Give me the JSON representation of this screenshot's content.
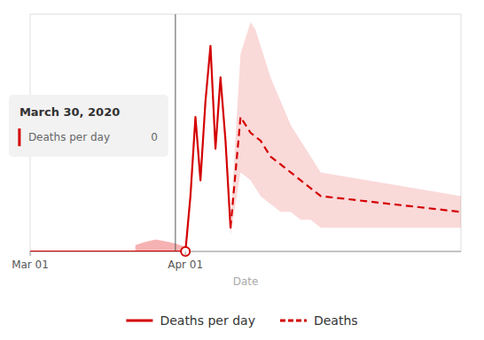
{
  "chart_data": {
    "type": "line",
    "xlabel": "Date",
    "xlim": [
      -31,
      55
    ],
    "xticks": [
      {
        "value": -31,
        "label": "Mar 01"
      },
      {
        "value": 0,
        "label": "Apr 01"
      }
    ],
    "ylim": [
      0,
      30
    ],
    "grid": false,
    "tick_labels": "x",
    "legend": "bottom",
    "series": [
      {
        "name": "Deaths per day",
        "color": "#d40000",
        "line_style": "solid",
        "x": [
          -31,
          -25,
          -15,
          -5,
          0,
          1,
          2,
          3,
          4,
          5,
          6,
          7,
          8,
          9
        ],
        "values": [
          0,
          0,
          0,
          0,
          0,
          7,
          17,
          9,
          19,
          26,
          13,
          22,
          14,
          3
        ]
      },
      {
        "name": "Deaths",
        "color": "#d40000",
        "line_style": "dashed",
        "x": [
          9,
          11,
          13,
          15,
          17,
          19,
          21,
          23,
          25,
          27,
          55
        ],
        "values": [
          3,
          17,
          15,
          14,
          12,
          11,
          10,
          9,
          8,
          7,
          5
        ]
      }
    ],
    "bands": [
      {
        "color": "#e00000",
        "x_upper": [
          9,
          11,
          13,
          14,
          15,
          17,
          19,
          21,
          23,
          25,
          27,
          55
        ],
        "upper": [
          4,
          25,
          29,
          28,
          26,
          22,
          19,
          16,
          14,
          12,
          10,
          7
        ],
        "x_lower": [
          9,
          11,
          13,
          15,
          17,
          19,
          21,
          23,
          25,
          27,
          55
        ],
        "lower": [
          2,
          10,
          9,
          7,
          6,
          5,
          5,
          4,
          4,
          3,
          3
        ]
      },
      {
        "color": "#e00000",
        "x_upper": [
          -10,
          -8,
          -6,
          -4,
          -2,
          0
        ],
        "upper": [
          0.8,
          1.2,
          1.5,
          1.3,
          1.0,
          0.6
        ],
        "x_lower": [
          -10,
          -8,
          -6,
          -4,
          -2,
          0
        ],
        "lower": [
          0,
          0,
          0,
          0,
          0,
          0
        ]
      }
    ],
    "vline": -2,
    "point": {
      "x": 0,
      "y": 0,
      "marker": "circle"
    },
    "tooltip": {
      "title": "March 30, 2020",
      "label": "Deaths per day",
      "value": 0
    }
  }
}
